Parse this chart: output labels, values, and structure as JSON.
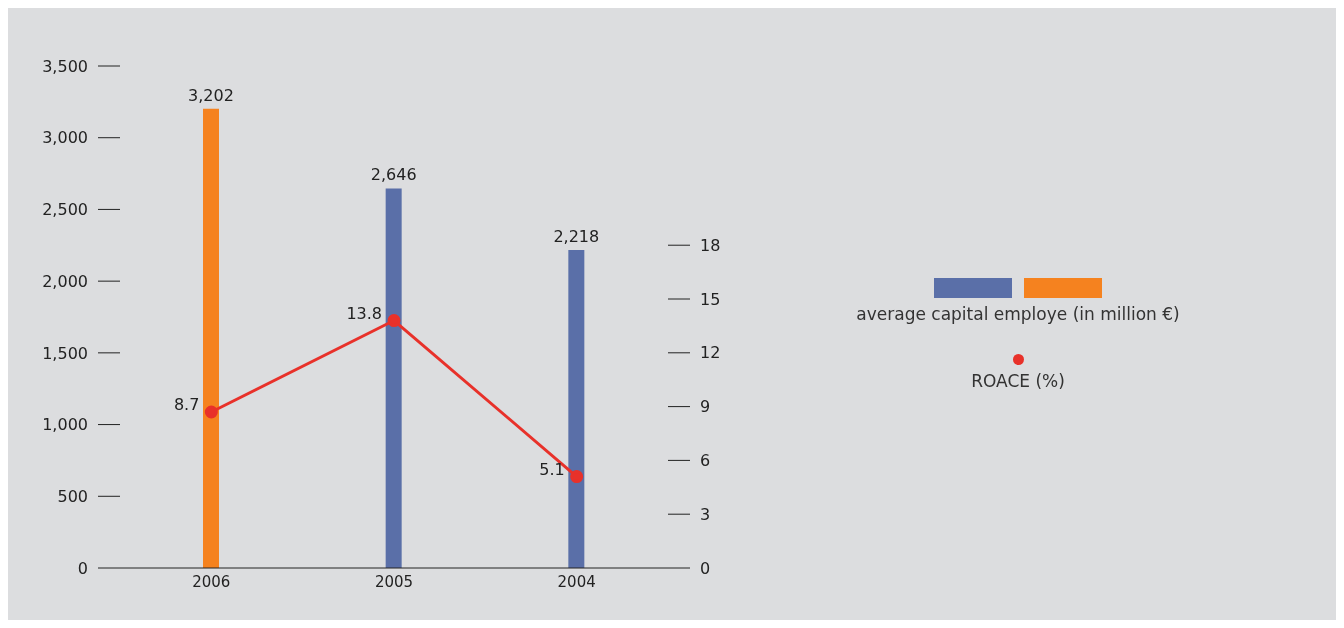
{
  "chart_data": {
    "type": "bar",
    "categories": [
      "2006",
      "2005",
      "2004"
    ],
    "series": [
      {
        "name": "average capital employe (in million €)",
        "colors": [
          "#f5821f",
          "#5a6fa8",
          "#5a6fa8"
        ],
        "values": [
          3202,
          2646,
          2218
        ],
        "value_labels": [
          "3,202",
          "2,646",
          "2,218"
        ]
      },
      {
        "type": "line",
        "name": "ROACE (%)",
        "color": "#e8312a",
        "axis": "y2",
        "values": [
          8.7,
          13.8,
          5.1
        ]
      }
    ],
    "ylim": [
      0,
      3500
    ],
    "yticks": [
      0,
      500,
      {
        "value": 1000,
        "label": "1,000"
      },
      {
        "value": 1500,
        "label": "1,500"
      },
      {
        "value": 2000,
        "label": "2,000"
      },
      {
        "value": 2500,
        "label": "2,500"
      },
      {
        "value": 3000,
        "label": "3,000"
      },
      {
        "value": 3500,
        "label": "3,500"
      }
    ],
    "y2lim": [
      0,
      18
    ],
    "y2ticks": [
      0,
      3,
      6,
      9,
      12,
      15,
      18
    ],
    "data_labels": true,
    "marker": "circle",
    "line_style": "solid",
    "grid": false,
    "legend": "right"
  }
}
